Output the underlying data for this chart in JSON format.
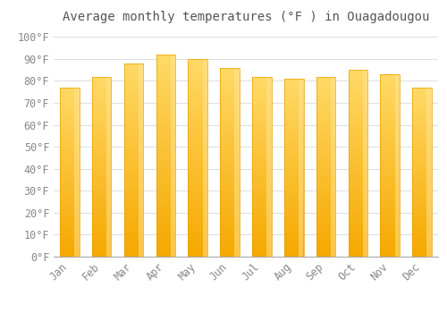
{
  "title": "Average monthly temperatures (°F ) in Ouagadougou",
  "categories": [
    "Jan",
    "Feb",
    "Mar",
    "Apr",
    "May",
    "Jun",
    "Jul",
    "Aug",
    "Sep",
    "Oct",
    "Nov",
    "Dec"
  ],
  "values": [
    77,
    82,
    88,
    92,
    90,
    86,
    82,
    81,
    82,
    85,
    83,
    77
  ],
  "bar_color_bottom": "#F5A800",
  "bar_color_top": "#FFD966",
  "background_color": "#FFFFFF",
  "ylim": [
    0,
    104
  ],
  "yticks": [
    0,
    10,
    20,
    30,
    40,
    50,
    60,
    70,
    80,
    90,
    100
  ],
  "grid_color": "#E0E0E0",
  "title_fontsize": 10,
  "tick_fontsize": 8.5,
  "bar_width": 0.6
}
